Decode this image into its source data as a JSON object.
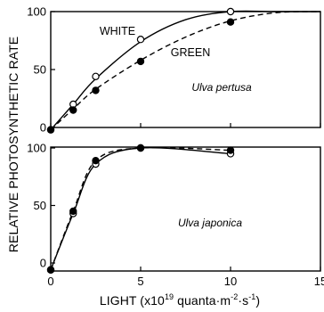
{
  "figure": {
    "ylabel": "RELATIVE PHOTOSYNTHETIC RATE",
    "xlabel": "LIGHT (x10",
    "xlabel_exp": "19",
    "xlabel_units": " quanta·m",
    "xlabel_units_exp": "-2",
    "xlabel_units_2": "·s",
    "xlabel_units_2_exp": "-1",
    "xlabel_close": ")",
    "colors": {
      "ink": "#000000",
      "open_marker_fill": "#ffffff",
      "background": "#ffffff"
    }
  },
  "chart_data": [
    {
      "type": "line",
      "panel": "top",
      "species": "Ulva pertusa",
      "xlim": [
        0,
        15
      ],
      "ylim": [
        0,
        100
      ],
      "x_ticks": [
        0,
        5,
        10,
        15
      ],
      "y_ticks": [
        0,
        50,
        100
      ],
      "y_tick_labels": [
        "0",
        "50",
        "100"
      ],
      "series": [
        {
          "name": "WHITE",
          "marker": "open-circle",
          "line": "solid",
          "points": [
            [
              0,
              -2
            ],
            [
              1.25,
              20
            ],
            [
              2.5,
              44
            ],
            [
              5,
              76
            ],
            [
              10,
              100
            ]
          ],
          "curve": [
            [
              0,
              -2
            ],
            [
              1.25,
              20
            ],
            [
              2.5,
              42
            ],
            [
              5,
              74
            ],
            [
              7.5,
              93
            ],
            [
              10,
              100
            ],
            [
              12.5,
              100
            ],
            [
              15,
              100
            ]
          ]
        },
        {
          "name": "GREEN",
          "marker": "filled-circle",
          "line": "dashed",
          "points": [
            [
              0,
              -2
            ],
            [
              1.25,
              15
            ],
            [
              2.5,
              32
            ],
            [
              5,
              57
            ],
            [
              10,
              91
            ]
          ],
          "curve": [
            [
              0,
              -2
            ],
            [
              1.25,
              16
            ],
            [
              2.5,
              33
            ],
            [
              5,
              58
            ],
            [
              7.5,
              78
            ],
            [
              10,
              92
            ],
            [
              12.5,
              99
            ],
            [
              15,
              100
            ]
          ]
        }
      ]
    },
    {
      "type": "line",
      "panel": "bottom",
      "species": "Ulva japonica",
      "xlim": [
        0,
        15
      ],
      "ylim": [
        0,
        100
      ],
      "x_ticks": [
        0,
        5,
        10,
        15
      ],
      "x_tick_labels": [
        "0",
        "5",
        "10",
        "15"
      ],
      "y_ticks": [
        0,
        50,
        100
      ],
      "y_tick_labels": [
        "0",
        "50",
        "100"
      ],
      "series": [
        {
          "name": "WHITE",
          "marker": "open-circle",
          "line": "solid",
          "points": [
            [
              0,
              -6
            ],
            [
              1.25,
              43
            ],
            [
              2.5,
              86
            ],
            [
              5,
              100
            ],
            [
              10,
              95
            ]
          ],
          "curve": [
            [
              0,
              -6
            ],
            [
              1.25,
              43
            ],
            [
              2.5,
              86
            ],
            [
              5,
              100
            ],
            [
              10,
              95
            ]
          ]
        },
        {
          "name": "GREEN",
          "marker": "filled-circle",
          "line": "dashed",
          "points": [
            [
              0,
              -6
            ],
            [
              1.25,
              45
            ],
            [
              2.5,
              89
            ],
            [
              5,
              100
            ],
            [
              10,
              98
            ]
          ],
          "curve": [
            [
              0,
              -6
            ],
            [
              1.25,
              45
            ],
            [
              2.5,
              89
            ],
            [
              5,
              100
            ],
            [
              10,
              98
            ]
          ]
        }
      ]
    }
  ]
}
